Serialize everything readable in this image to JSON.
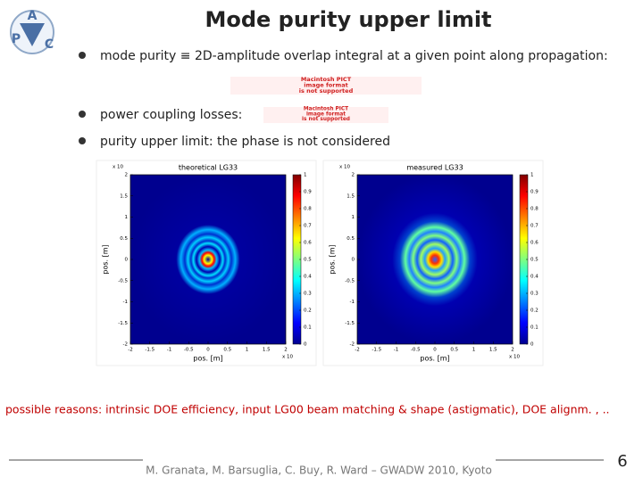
{
  "logo": {
    "top": "A",
    "left": "P",
    "right": "C"
  },
  "title": "Mode purity upper limit",
  "bullets": [
    "mode purity ≡ 2D-amplitude overlap integral at a given point along propagation:",
    "power coupling losses:",
    "purity upper limit: the phase is not considered"
  ],
  "placeholders": [
    [
      "Macintosh PICT",
      "image format",
      "is not supported"
    ],
    [
      "Macintosh PICT",
      "image format",
      "is not supported"
    ]
  ],
  "figures": [
    {
      "title": "theoretical LG33"
    },
    {
      "title": "measured LG33"
    }
  ],
  "axes": {
    "xlabel": "pos. [m]",
    "ylabel": "pos. [m]",
    "exponent_label": "x 10",
    "xticks": [
      -2,
      -1.5,
      -1,
      -0.5,
      0,
      0.5,
      1,
      1.5,
      2
    ],
    "yticks": [
      2,
      1.5,
      1,
      0.5,
      0,
      -0.5,
      -1,
      -1.5,
      -2
    ],
    "colorbar_ticks": [
      1,
      0.9,
      0.8,
      0.7,
      0.6,
      0.5,
      0.4,
      0.3,
      0.2,
      0.1,
      0
    ]
  },
  "note": "possible reasons: intrinsic DOE efficiency, input LG00 beam matching & shape (astigmatic), DOE alignm. , ..",
  "footer": "M. Granata, M. Barsuglia, C. Buy, R. Ward – GWADW 2010, Kyoto",
  "page_number": "6"
}
